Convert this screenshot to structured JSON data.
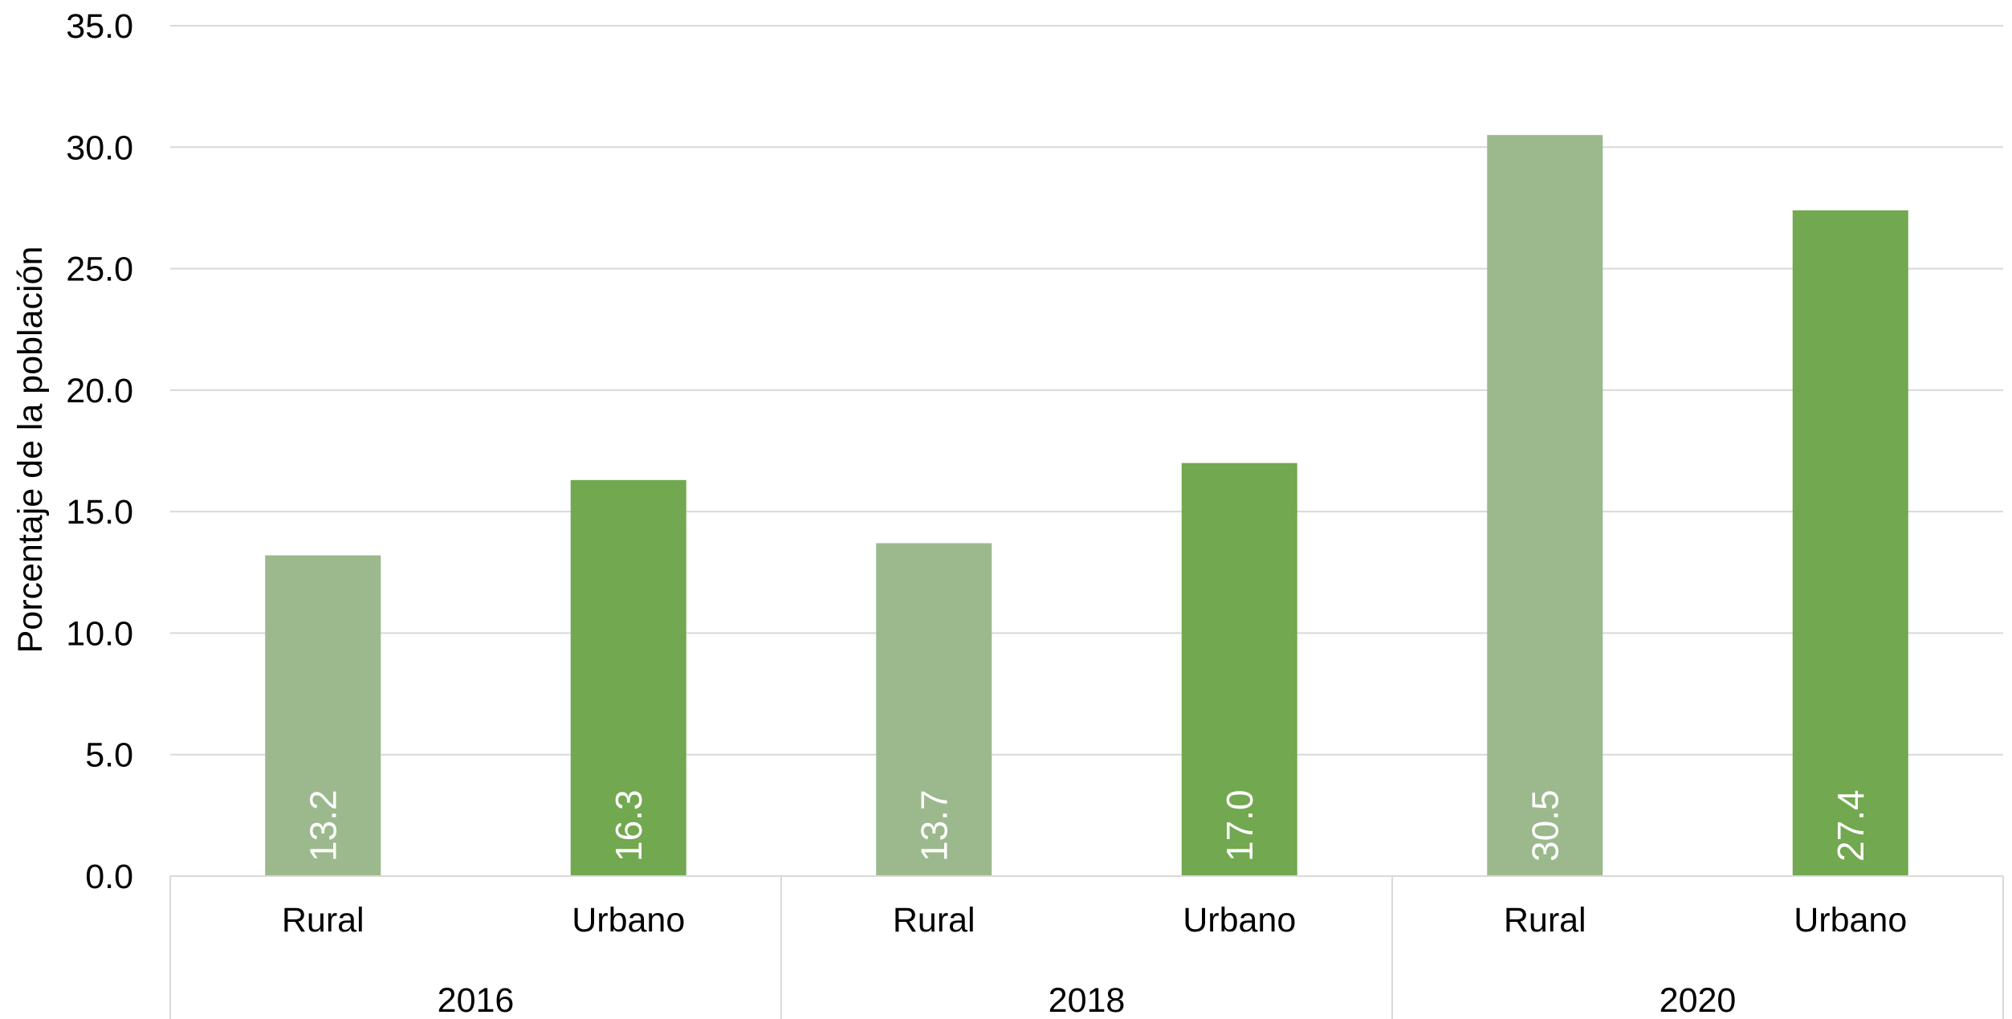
{
  "chart_data": {
    "type": "bar",
    "ylabel": "Porcentaje de la población",
    "xlabel": "",
    "title": "",
    "ylim": [
      0,
      35
    ],
    "y_ticks": [
      "0.0",
      "5.0",
      "10.0",
      "15.0",
      "20.0",
      "25.0",
      "30.0",
      "35.0"
    ],
    "grid": true,
    "groups": [
      "2016",
      "2018",
      "2020"
    ],
    "bars": [
      {
        "group": "2016",
        "category": "Rural",
        "value": 13.2,
        "label": "13.2",
        "color": "#9bb98d"
      },
      {
        "group": "2016",
        "category": "Urbano",
        "value": 16.3,
        "label": "16.3",
        "color": "#72a84f"
      },
      {
        "group": "2018",
        "category": "Rural",
        "value": 13.7,
        "label": "13.7",
        "color": "#9bb98d"
      },
      {
        "group": "2018",
        "category": "Urbano",
        "value": 17.0,
        "label": "17.0",
        "color": "#72a84f"
      },
      {
        "group": "2020",
        "category": "Rural",
        "value": 30.5,
        "label": "30.5",
        "color": "#9bb98d"
      },
      {
        "group": "2020",
        "category": "Urbano",
        "value": 27.4,
        "label": "27.4",
        "color": "#72a84f"
      }
    ],
    "colors": {
      "rural": "#9bb98d",
      "urbano": "#72a84f",
      "grid": "#d9d9d9",
      "axis": "#d9d9d9"
    }
  }
}
